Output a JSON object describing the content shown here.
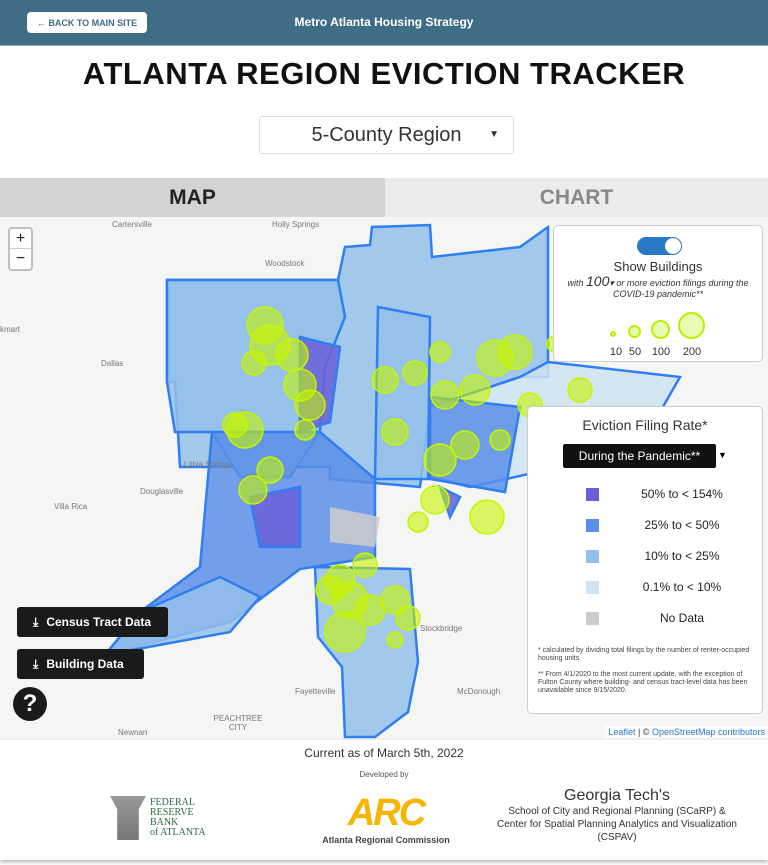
{
  "header": {
    "back_label": "← BACK TO MAIN SITE",
    "site_title": "Metro Atlanta Housing Strategy"
  },
  "title": "ATLANTA REGION EVICTION TRACKER",
  "region_select": {
    "value": "5-County Region"
  },
  "tabs": [
    {
      "label": "MAP",
      "active": true
    },
    {
      "label": "CHART",
      "active": false
    }
  ],
  "map": {
    "zoom_in": "+",
    "zoom_out": "−",
    "places": [
      "Cartersville",
      "Holly Springs",
      "Woodstock",
      "Dallas",
      "Lithia Springs",
      "Douglasville",
      "Villa Rica",
      "Newnan",
      "PEACHTREE CITY",
      "Fayetteville",
      "McDonough",
      "Stockbridge",
      "kmart"
    ],
    "buildings_panel": {
      "toggle_on": true,
      "title": "Show Buildings",
      "sub_prefix": "with",
      "threshold": "100",
      "sub_suffix": "or more eviction filings during the COVID-19 pandemic**",
      "sizes": [
        "10",
        "50",
        "100",
        "200"
      ]
    },
    "rate_legend": {
      "title": "Eviction Filing Rate*",
      "period": "During the Pandemic**",
      "items": [
        {
          "label": "50% to < 154%",
          "color": "#6a5fd8"
        },
        {
          "label": "25% to < 50%",
          "color": "#5b8ee8"
        },
        {
          "label": "10% to < 25%",
          "color": "#93c0ea"
        },
        {
          "label": "0.1% to < 10%",
          "color": "#cfe3f2"
        },
        {
          "label": "No Data",
          "color": "#cccccc"
        }
      ],
      "note1": "* calculated by dividing total filings by the number of renter-occupied housing units",
      "note2": "** From 4/1/2020 to the most current update, with the exception of Fulton County where building- and census tract-level data has been unavailable since 9/15/2020."
    },
    "download_tract": "Census Tract Data",
    "download_building": "Building Data",
    "help": "?",
    "attribution": {
      "leaflet": "Leaflet",
      "sep": " | © ",
      "osm": "OpenStreetMap contributors"
    },
    "colors": {
      "border": "#2f7ff0",
      "bubble": "#c6f500"
    }
  },
  "footer": {
    "current": "Current as of March 5th, 2022",
    "developed_by": "Developed by",
    "frb": [
      "FEDERAL",
      "RESERVE",
      "BANK",
      "of ATLANTA"
    ],
    "arc_logo": "ARC",
    "arc_name": "Atlanta Regional Commission",
    "gt_title": "Georgia Tech's",
    "gt_line1": "School of City and Regional Planning (SCaRP) &",
    "gt_line2": "Center for Spatial Planning Analytics and Visualization (CSPAV)"
  }
}
